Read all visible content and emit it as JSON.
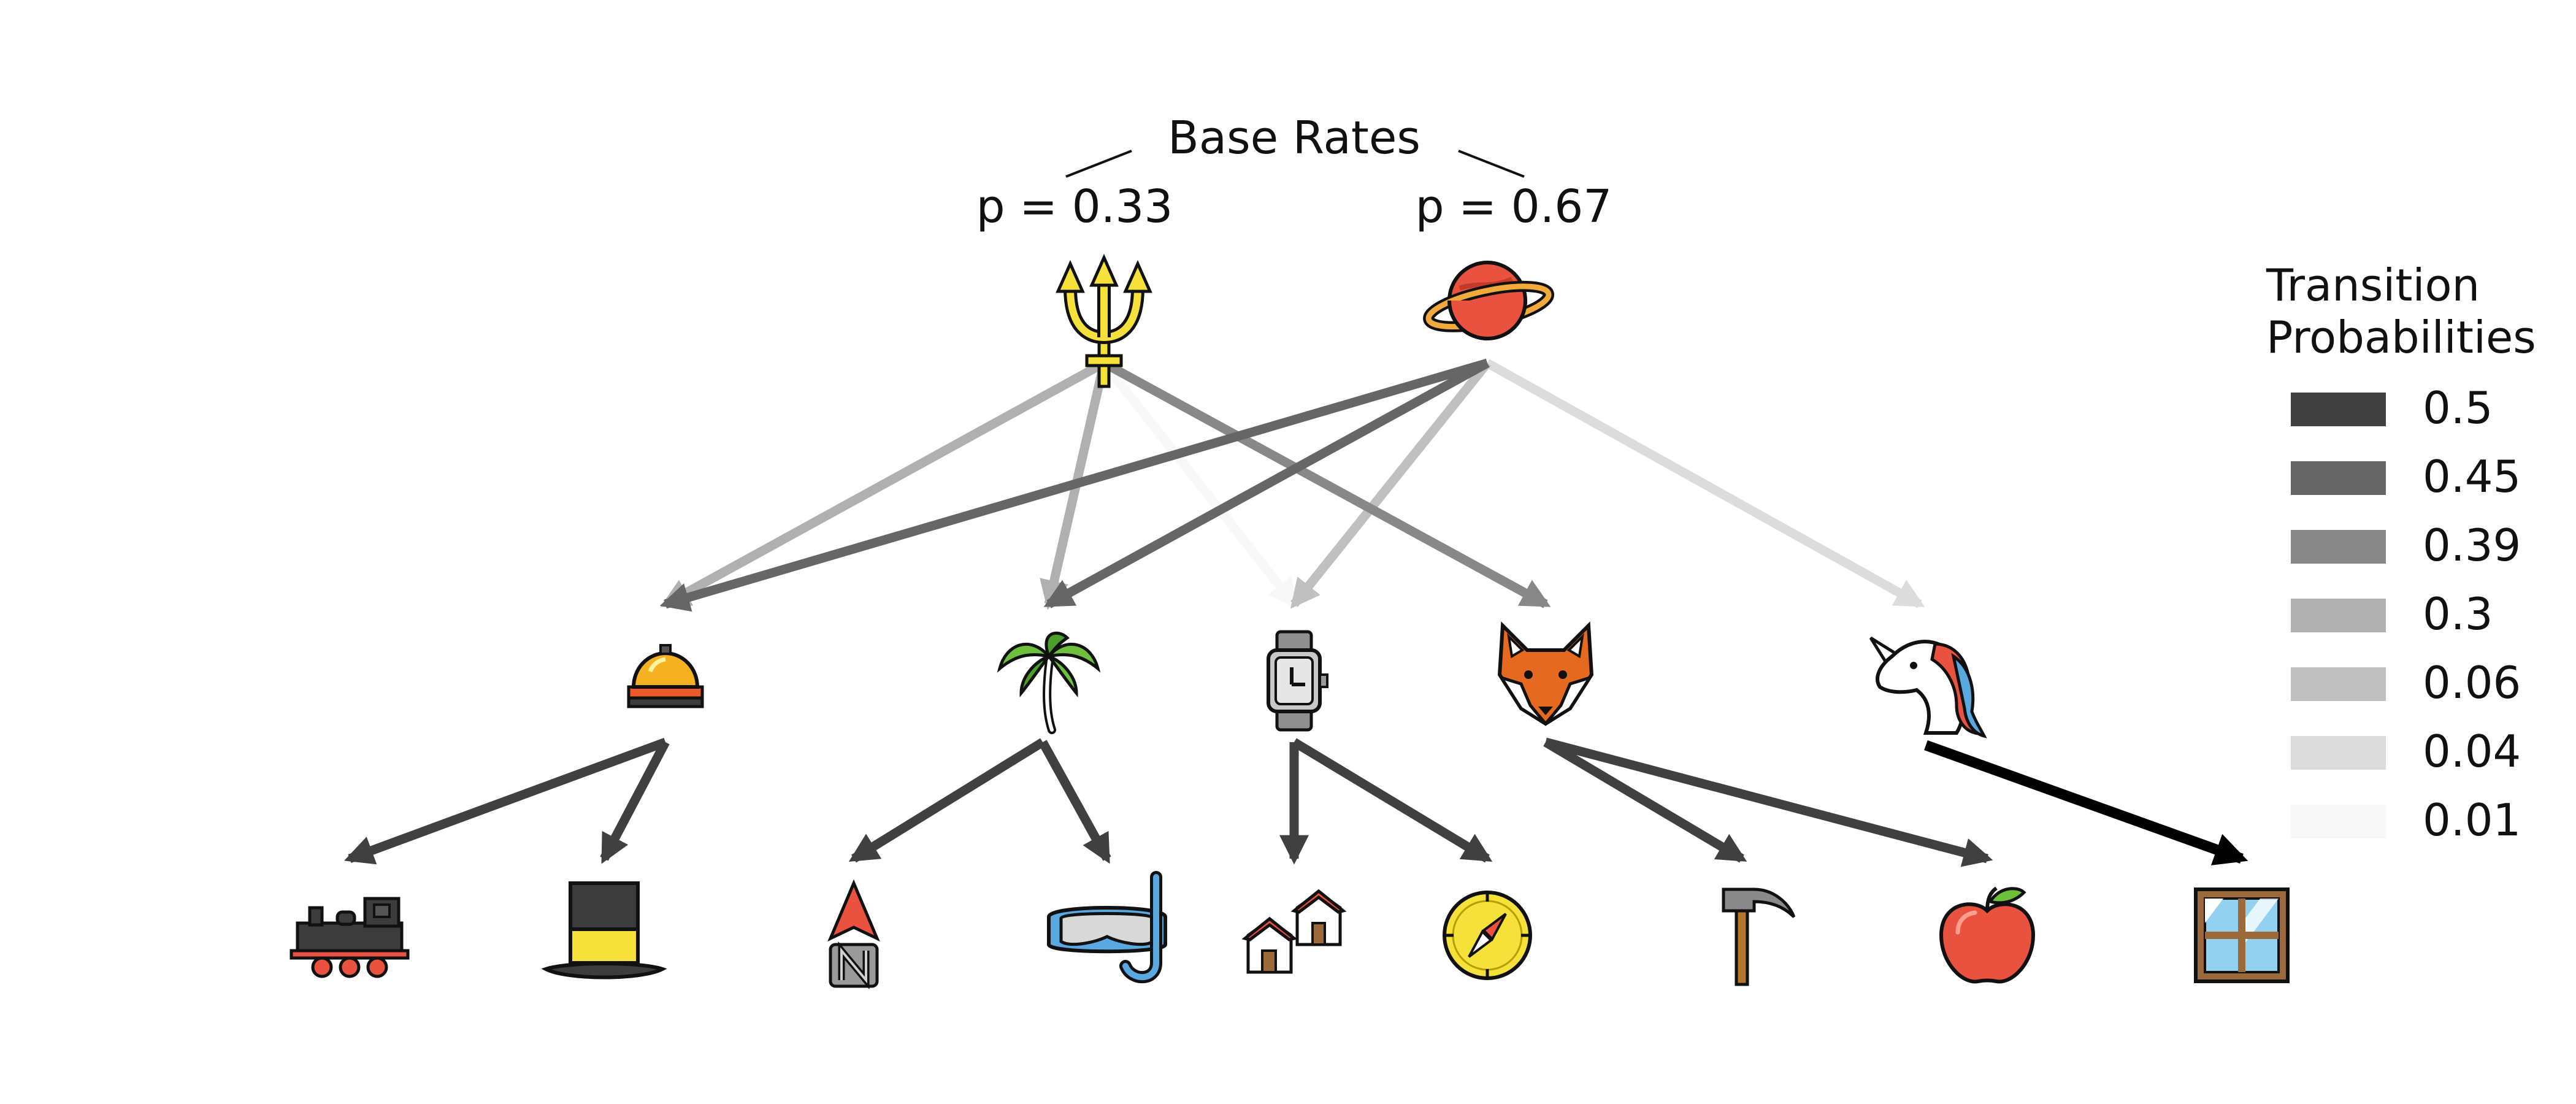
{
  "base_rates": {
    "title": "Base Rates",
    "left": "p = 0.33",
    "right": "p = 0.67"
  },
  "legend": {
    "title_line1": "Transition",
    "title_line2": "Probabilities",
    "entries": [
      {
        "label": "0.5",
        "color": "#404040"
      },
      {
        "label": "0.45",
        "color": "#666666"
      },
      {
        "label": "0.39",
        "color": "#888888"
      },
      {
        "label": "0.3",
        "color": "#b0b0b0"
      },
      {
        "label": "0.06",
        "color": "#c0c0c0"
      },
      {
        "label": "0.04",
        "color": "#dcdcdc"
      },
      {
        "label": "0.01",
        "color": "#f8f8f8"
      }
    ]
  },
  "nodes": {
    "roots": [
      "trident-icon",
      "planet-icon"
    ],
    "middle": [
      "bellhop-bell-icon",
      "palm-tree-icon",
      "watch-icon",
      "fox-icon",
      "unicorn-icon"
    ],
    "leaves": [
      "locomotive-icon",
      "top-hat-icon",
      "north-arrow-icon",
      "snorkel-mask-icon",
      "houses-icon",
      "compass-icon",
      "hammer-icon",
      "apple-icon",
      "window-icon"
    ]
  },
  "transitions": [
    {
      "from": "trident-icon",
      "to": "bellhop-bell-icon",
      "p": "0.3",
      "color": "#b0b0b0"
    },
    {
      "from": "trident-icon",
      "to": "palm-tree-icon",
      "p": "0.3",
      "color": "#b0b0b0"
    },
    {
      "from": "trident-icon",
      "to": "watch-icon",
      "p": "0.01",
      "color": "#f8f8f8"
    },
    {
      "from": "trident-icon",
      "to": "fox-icon",
      "p": "0.39",
      "color": "#888888"
    },
    {
      "from": "planet-icon",
      "to": "bellhop-bell-icon",
      "p": "0.45",
      "color": "#666666"
    },
    {
      "from": "planet-icon",
      "to": "palm-tree-icon",
      "p": "0.45",
      "color": "#666666"
    },
    {
      "from": "planet-icon",
      "to": "watch-icon",
      "p": "0.06",
      "color": "#c0c0c0"
    },
    {
      "from": "planet-icon",
      "to": "unicorn-icon",
      "p": "0.04",
      "color": "#dcdcdc"
    },
    {
      "from": "bellhop-bell-icon",
      "to": "locomotive-icon",
      "p": "0.5",
      "color": "#404040"
    },
    {
      "from": "bellhop-bell-icon",
      "to": "top-hat-icon",
      "p": "0.5",
      "color": "#404040"
    },
    {
      "from": "palm-tree-icon",
      "to": "north-arrow-icon",
      "p": "0.5",
      "color": "#404040"
    },
    {
      "from": "palm-tree-icon",
      "to": "snorkel-mask-icon",
      "p": "0.5",
      "color": "#404040"
    },
    {
      "from": "watch-icon",
      "to": "houses-icon",
      "p": "0.5",
      "color": "#404040"
    },
    {
      "from": "watch-icon",
      "to": "compass-icon",
      "p": "0.5",
      "color": "#404040"
    },
    {
      "from": "fox-icon",
      "to": "hammer-icon",
      "p": "0.5",
      "color": "#404040"
    },
    {
      "from": "fox-icon",
      "to": "apple-icon",
      "p": "0.5",
      "color": "#404040"
    },
    {
      "from": "unicorn-icon",
      "to": "window-icon",
      "p": "1",
      "color": "#000000"
    }
  ]
}
